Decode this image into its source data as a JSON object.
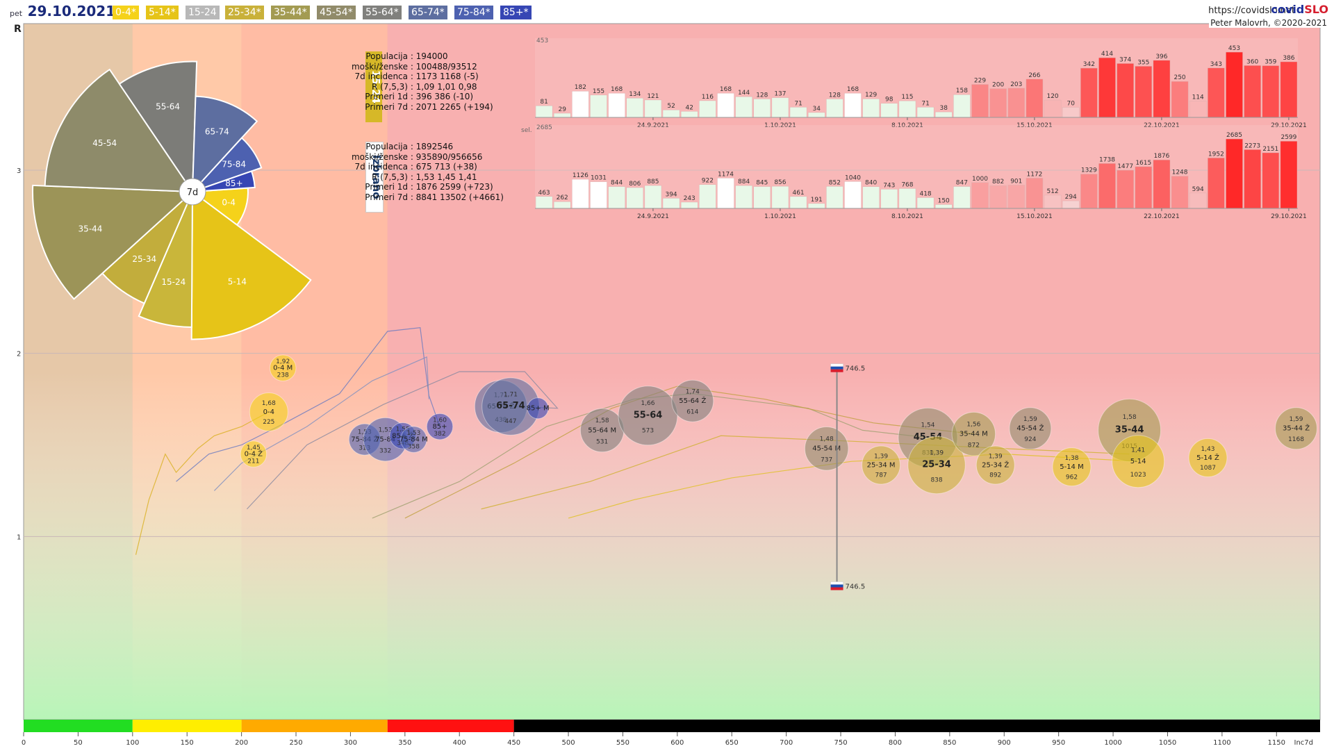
{
  "header": {
    "day": "pet",
    "date": "29.10.2021",
    "site": "https://covidslo.net",
    "brand_a": "covid",
    "brand_b": "SLO",
    "author": "Peter Malovrh, ©2020-2021",
    "age_buttons": [
      {
        "label": "0-4*",
        "color": "#f5d21a"
      },
      {
        "label": "5-14*",
        "color": "#e6c418"
      },
      {
        "label": "15-24",
        "color": "#b8b8b8"
      },
      {
        "label": "25-34*",
        "color": "#c9b13a"
      },
      {
        "label": "35-44*",
        "color": "#a39b52"
      },
      {
        "label": "45-54*",
        "color": "#918b6a"
      },
      {
        "label": "55-64*",
        "color": "#80807d"
      },
      {
        "label": "65-74*",
        "color": "#5d6ea0"
      },
      {
        "label": "75-84*",
        "color": "#4d61b0"
      },
      {
        "label": "85+*",
        "color": "#3646b4"
      }
    ]
  },
  "info_15_24": {
    "tag": "15-24",
    "rows": [
      [
        "Populacija",
        ": 194000"
      ],
      [
        "moški/ženske",
        ": 100488/93512"
      ],
      [
        "7d incidenca",
        ": 1173 1168 (-5)"
      ],
      [
        "R (7,5,3)",
        ": 1,09 1,01 0,98"
      ],
      [
        "Primeri 1d",
        ": 396 386 (-10)"
      ],
      [
        "Primeri 7d",
        ": 2071 2265 (+194)"
      ]
    ]
  },
  "info_izbrano": {
    "tag": "Izbrano",
    "rows": [
      [
        "Populacija",
        ": 1892546"
      ],
      [
        "moški/ženske",
        ": 935890/956656"
      ],
      [
        "7d incidenca",
        ": 675 713 (+38)"
      ],
      [
        "R (7,5,3)",
        ": 1,53 1,45 1,41"
      ],
      [
        "Primeri 1d",
        ": 1876 2599 (+723)"
      ],
      [
        "Primeri 7d",
        ": 8841 13502 (+4661)"
      ]
    ]
  },
  "chart_data": [
    {
      "type": "scatter",
      "ylabel": "R",
      "xlabel": "Inc7d",
      "xlim": [
        0,
        1190
      ],
      "ylim": [
        0,
        3.8
      ],
      "x_ticks": [
        0,
        50,
        100,
        150,
        200,
        250,
        300,
        350,
        400,
        450,
        500,
        550,
        600,
        650,
        700,
        750,
        800,
        850,
        900,
        950,
        1000,
        1050,
        1100,
        1150
      ],
      "y_ticks": [
        1,
        2,
        3
      ],
      "risk_bands": [
        {
          "from": 0,
          "to": 100,
          "color": "#22dd22"
        },
        {
          "from": 100,
          "to": 200,
          "color": "#ffee00"
        },
        {
          "from": 200,
          "to": 334,
          "color": "#ffaa00"
        },
        {
          "from": 334,
          "to": 450,
          "color": "#ff1111"
        },
        {
          "from": 450,
          "to": 1190,
          "color": "#000000"
        }
      ],
      "zones": [
        {
          "from": 0,
          "to": 100,
          "color": "#e6c8a8"
        },
        {
          "from": 100,
          "to": 200,
          "color": "#ffc9a8"
        },
        {
          "from": 200,
          "to": 334,
          "color": "#ffbca4"
        },
        {
          "from": 334,
          "to": 1190,
          "color": "#f8b0b0"
        }
      ],
      "bubbles": [
        {
          "x": 238,
          "y": 1.92,
          "r": 15,
          "label": "0-4 M",
          "rlabel": "1,92",
          "inc": "238",
          "color": "#f5d21a"
        },
        {
          "x": 225,
          "y": 1.68,
          "r": 22,
          "label": "0-4",
          "rlabel": "1,68",
          "inc": "225",
          "color": "#f5d21a"
        },
        {
          "x": 211,
          "y": 1.45,
          "r": 15,
          "label": "0-4 Ž",
          "rlabel": "1,45",
          "inc": "211",
          "color": "#f5d21a"
        },
        {
          "x": 313,
          "y": 1.53,
          "r": 18,
          "label": "75-84 Ž",
          "rlabel": "1,53",
          "inc": "313",
          "color": "#4d61b0"
        },
        {
          "x": 332,
          "y": 1.53,
          "r": 25,
          "label": "75-84",
          "rlabel": "1,53",
          "inc": "332",
          "color": "#4d61b0"
        },
        {
          "x": 348,
          "y": 1.55,
          "r": 15,
          "label": "85+ Ž",
          "rlabel": "1,55",
          "inc": "348",
          "color": "#3646b4"
        },
        {
          "x": 358,
          "y": 1.53,
          "r": 15,
          "label": "75-84 M",
          "rlabel": "1,53",
          "inc": "358",
          "color": "#4d61b0"
        },
        {
          "x": 382,
          "y": 1.6,
          "r": 15,
          "label": "85+",
          "rlabel": "1,60",
          "inc": "382",
          "color": "#3646b4"
        },
        {
          "x": 438,
          "y": 1.71,
          "r": 30,
          "label": "65-74 Ž",
          "rlabel": "1,71",
          "inc": "438",
          "color": "#5d6ea0"
        },
        {
          "x": 447,
          "y": 1.71,
          "r": 33,
          "label": "65-74",
          "rlabel": "1,71",
          "inc": "447",
          "color": "#5d6ea0"
        },
        {
          "x": 472,
          "y": 1.7,
          "r": 12,
          "label": "85+ M",
          "rlabel": "",
          "inc": "",
          "color": "#3646b4"
        },
        {
          "x": 531,
          "y": 1.58,
          "r": 25,
          "label": "55-64 M",
          "rlabel": "1,58",
          "inc": "531",
          "color": "#80807d"
        },
        {
          "x": 573,
          "y": 1.66,
          "r": 34,
          "label": "55-64",
          "rlabel": "1,66",
          "inc": "573",
          "color": "#80807d"
        },
        {
          "x": 614,
          "y": 1.74,
          "r": 24,
          "label": "55-64 Ž",
          "rlabel": "1,74",
          "inc": "614",
          "color": "#80807d"
        },
        {
          "x": 737,
          "y": 1.48,
          "r": 25,
          "label": "45-54 M",
          "rlabel": "1,48",
          "inc": "737",
          "color": "#918b6a"
        },
        {
          "x": 787,
          "y": 1.39,
          "r": 22,
          "label": "25-34 M",
          "rlabel": "1,39",
          "inc": "787",
          "color": "#c9b13a"
        },
        {
          "x": 830,
          "y": 1.54,
          "r": 34,
          "label": "45-54",
          "rlabel": "1,54",
          "inc": "830",
          "color": "#918b6a"
        },
        {
          "x": 838,
          "y": 1.39,
          "r": 33,
          "label": "25-34",
          "rlabel": "1,39",
          "inc": "838",
          "color": "#c9b13a"
        },
        {
          "x": 872,
          "y": 1.56,
          "r": 25,
          "label": "35-44 M",
          "rlabel": "1,56",
          "inc": "872",
          "color": "#a39b52"
        },
        {
          "x": 892,
          "y": 1.39,
          "r": 22,
          "label": "25-34 Ž",
          "rlabel": "1,39",
          "inc": "892",
          "color": "#c9b13a"
        },
        {
          "x": 924,
          "y": 1.59,
          "r": 24,
          "label": "45-54 Ž",
          "rlabel": "1,59",
          "inc": "924",
          "color": "#918b6a"
        },
        {
          "x": 962,
          "y": 1.38,
          "r": 22,
          "label": "5-14 M",
          "rlabel": "1,38",
          "inc": "962",
          "color": "#e6c418"
        },
        {
          "x": 1015,
          "y": 1.58,
          "r": 36,
          "label": "35-44",
          "rlabel": "1,58",
          "inc": "1015",
          "color": "#a39b52"
        },
        {
          "x": 1023,
          "y": 1.41,
          "r": 30,
          "label": "5-14",
          "rlabel": "1,41",
          "inc": "1023",
          "color": "#e6c418"
        },
        {
          "x": 1087,
          "y": 1.43,
          "r": 22,
          "label": "5-14 Ž",
          "rlabel": "1,43",
          "inc": "1087",
          "color": "#e6c418"
        },
        {
          "x": 1168,
          "y": 1.59,
          "r": 24,
          "label": "35-44 Ž",
          "rlabel": "1,59",
          "inc": "1168",
          "color": "#a39b52"
        }
      ],
      "slovenia_marker": {
        "x": 746.5,
        "y_top": 1.92,
        "y_bottom": 0.73,
        "label": "746.5"
      }
    },
    {
      "type": "bar",
      "title": "15-24",
      "ymax_label": "453",
      "date_ticks": [
        {
          "i": 6,
          "label": "24.9.2021"
        },
        {
          "i": 13,
          "label": "1.10.2021"
        },
        {
          "i": 20,
          "label": "8.10.2021"
        },
        {
          "i": 27,
          "label": "15.10.2021"
        },
        {
          "i": 34,
          "label": "22.10.2021"
        },
        {
          "i": 41,
          "label": "29.10.2021"
        }
      ],
      "values": [
        81,
        29,
        182,
        155,
        168,
        134,
        121,
        52,
        42,
        116,
        168,
        144,
        128,
        137,
        71,
        34,
        128,
        168,
        129,
        98,
        115,
        71,
        38,
        158,
        229,
        200,
        203,
        266,
        120,
        70,
        342,
        414,
        374,
        355,
        396,
        250,
        114,
        343,
        453,
        360,
        359,
        386
      ]
    },
    {
      "type": "bar",
      "title": "Izbrano",
      "ymax_label": "2685",
      "sel_label": "sel.",
      "date_ticks": [
        {
          "i": 6,
          "label": "24.9.2021"
        },
        {
          "i": 13,
          "label": "1.10.2021"
        },
        {
          "i": 20,
          "label": "8.10.2021"
        },
        {
          "i": 27,
          "label": "15.10.2021"
        },
        {
          "i": 34,
          "label": "22.10.2021"
        },
        {
          "i": 41,
          "label": "29.10.2021"
        }
      ],
      "values": [
        463,
        262,
        1126,
        1031,
        844,
        806,
        885,
        394,
        243,
        922,
        1174,
        884,
        845,
        856,
        461,
        191,
        852,
        1040,
        840,
        743,
        768,
        418,
        150,
        847,
        1000,
        882,
        901,
        1172,
        512,
        294,
        1329,
        1738,
        1477,
        1615,
        1876,
        1248,
        594,
        1952,
        2685,
        2273,
        2151,
        2599
      ]
    },
    {
      "type": "pie",
      "center_label": "7d",
      "slices": [
        {
          "label": "0-4",
          "value": 0.32,
          "color": "#f5d21a"
        },
        {
          "label": "5-14",
          "value": 0.85,
          "color": "#e6c418"
        },
        {
          "label": "15-24",
          "value": 0.78,
          "color": "#c9b63a"
        },
        {
          "label": "25-34",
          "value": 0.7,
          "color": "#c2ad3c"
        },
        {
          "label": "35-44",
          "value": 0.92,
          "color": "#9c9458"
        },
        {
          "label": "45-54",
          "value": 0.85,
          "color": "#8e8b6a"
        },
        {
          "label": "55-64",
          "value": 0.75,
          "color": "#7c7c78"
        },
        {
          "label": "65-74",
          "value": 0.55,
          "color": "#5d6ea0"
        },
        {
          "label": "75-84",
          "value": 0.42,
          "color": "#4d61b0"
        },
        {
          "label": "85+",
          "value": 0.36,
          "color": "#3646b4"
        }
      ]
    }
  ]
}
